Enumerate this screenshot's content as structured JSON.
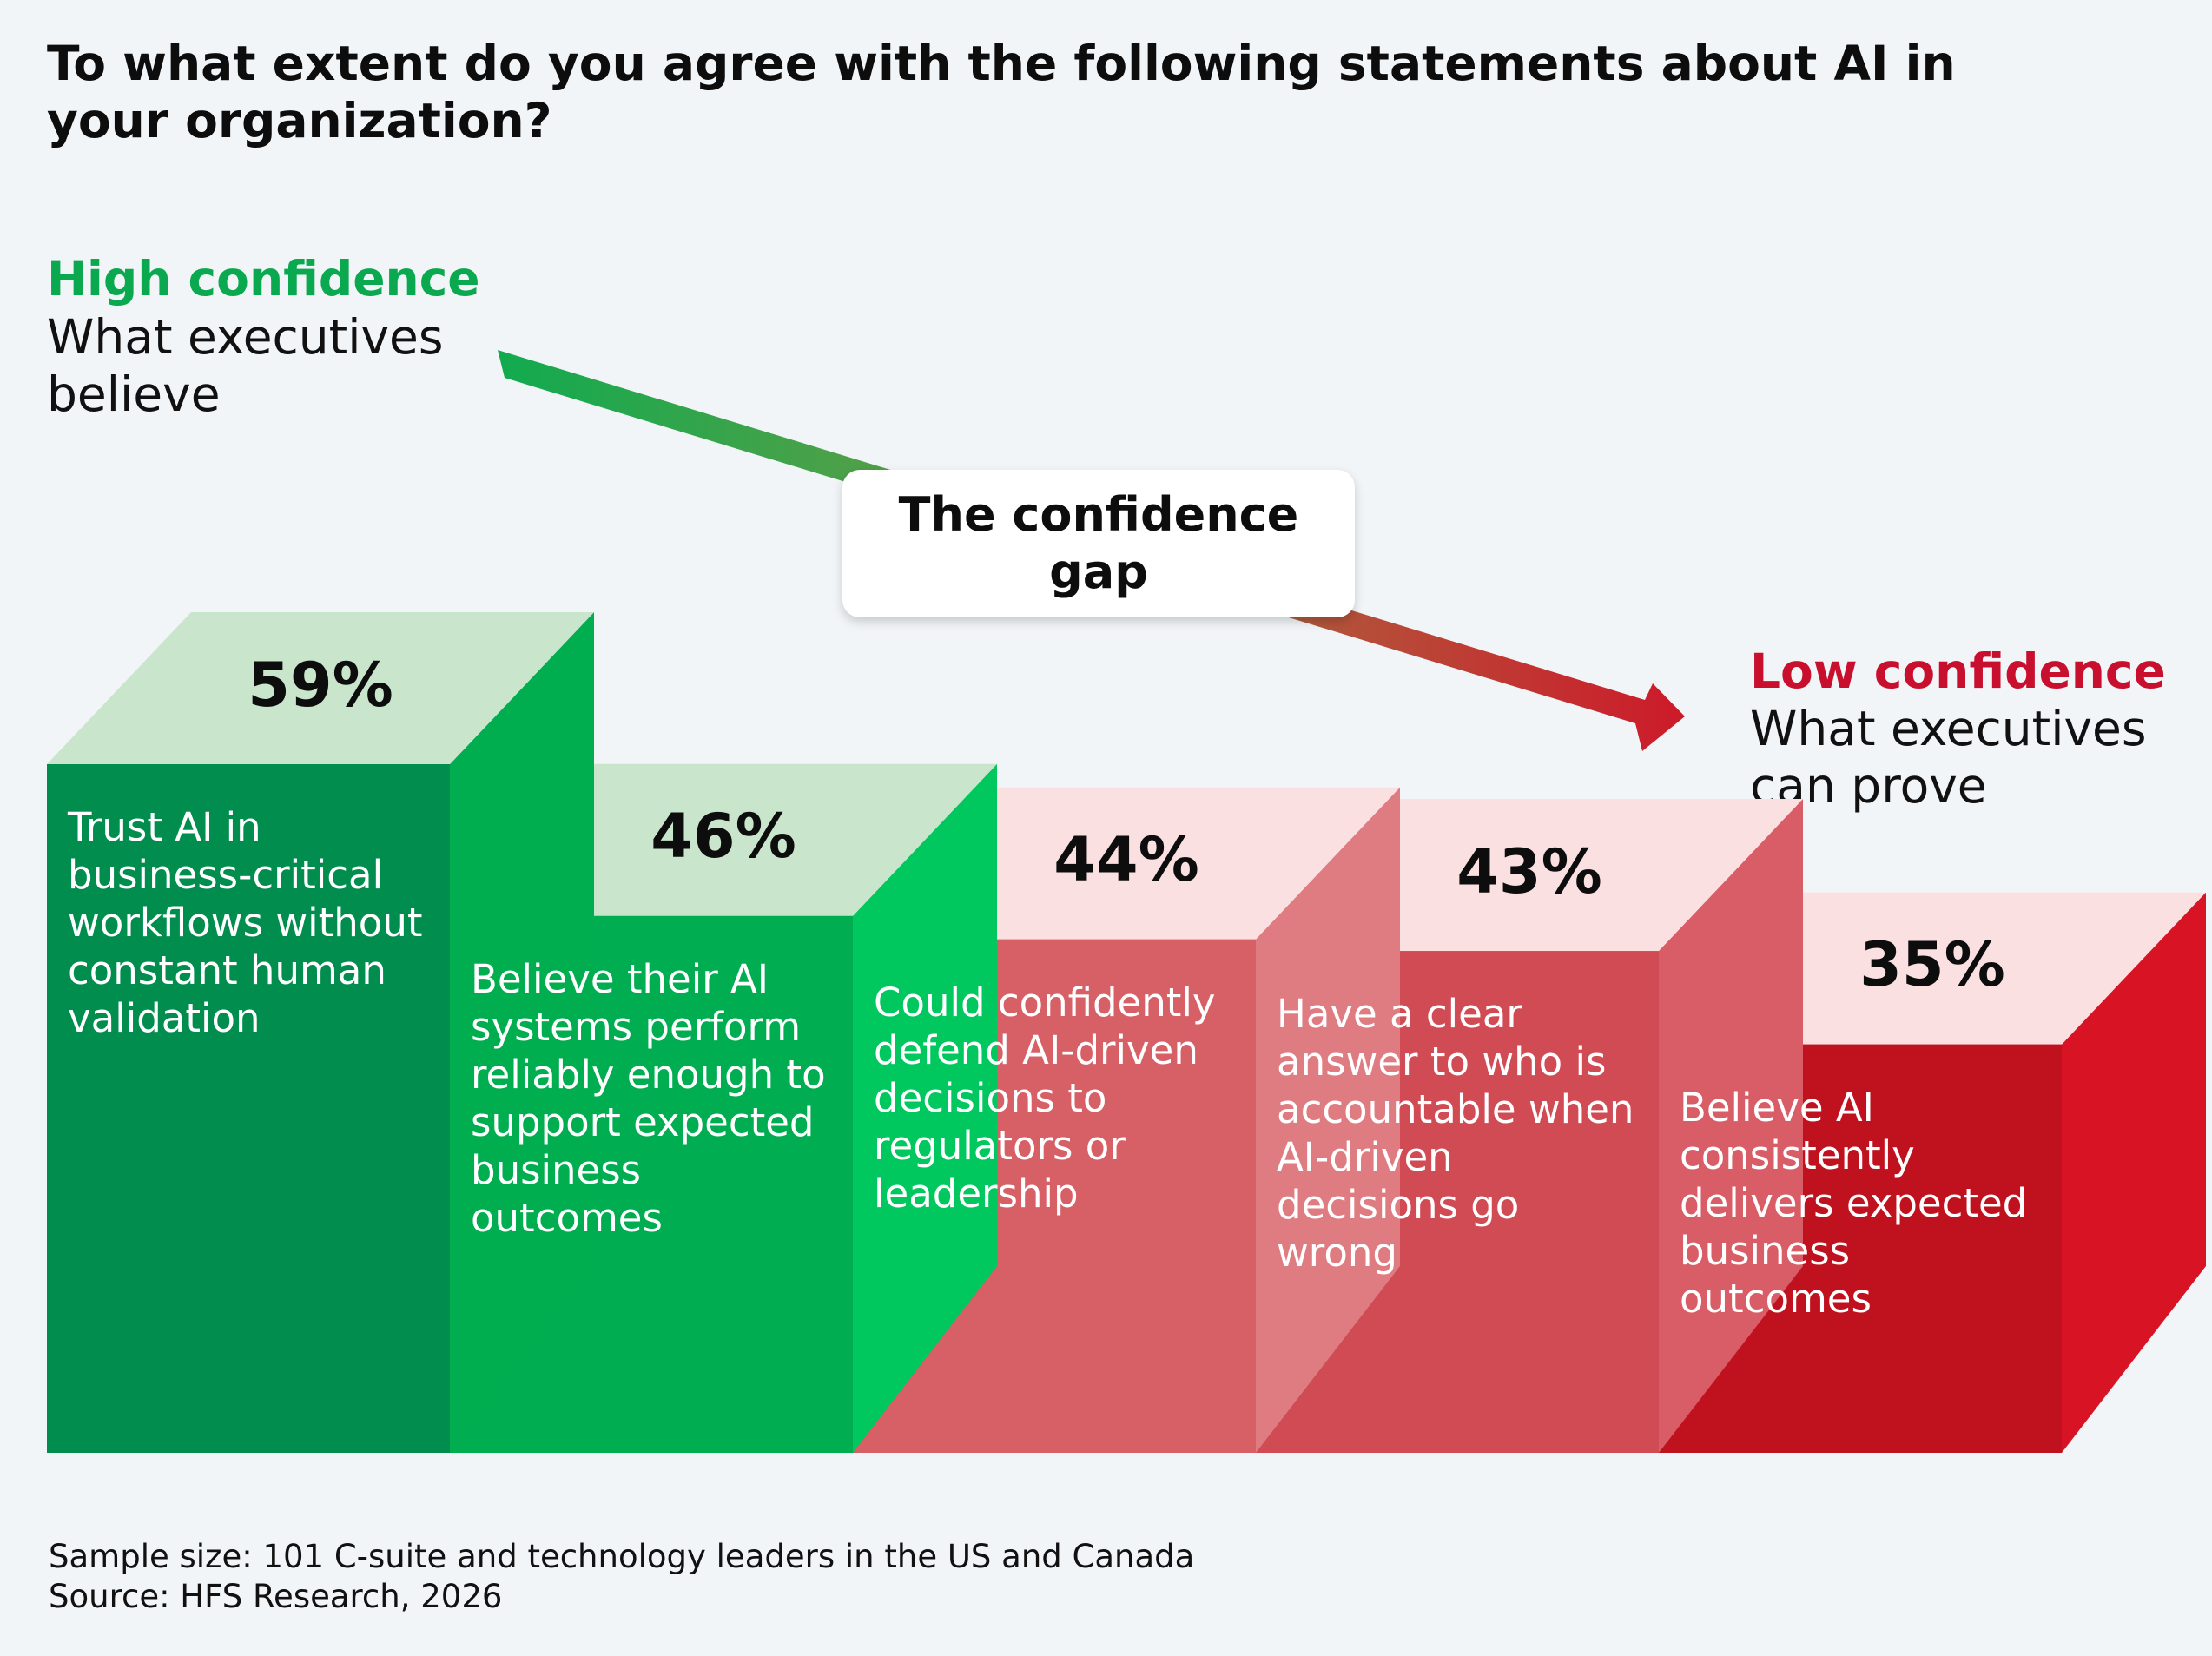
{
  "title": "To what extent do you agree with the following statements about AI in your organization?",
  "high_confidence": {
    "heading": "High confidence",
    "subtitle": "What executives believe",
    "color": "#0aa84f"
  },
  "low_confidence": {
    "heading": "Low confidence",
    "subtitle": "What executives can prove",
    "color": "#c8102e"
  },
  "callout": "The confidence gap",
  "chart_data": {
    "type": "bar",
    "title": "To what extent do you agree with the following statements about AI in your organization?",
    "categories": [
      "Trust AI in business-critical workflows without constant human validation",
      "Believe their AI systems perform reliably enough to support expected business outcomes",
      "Could confidently defend AI-driven decisions to regulators or leadership",
      "Have a clear answer to who is accountable when AI-driven decisions go wrong",
      "Believe AI consistently delivers expected business outcomes"
    ],
    "values": [
      59,
      46,
      44,
      43,
      35
    ],
    "labels": [
      "59%",
      "46%",
      "44%",
      "43%",
      "35%"
    ],
    "unit": "%",
    "colors": [
      "#008d4e",
      "#00ad50",
      "#d66066",
      "#d04b53",
      "#c0111f"
    ]
  },
  "footnotes": {
    "sample": "Sample size: 101 C-suite and technology leaders in the US and Canada",
    "source": "Source: HFS Research, 2026"
  }
}
